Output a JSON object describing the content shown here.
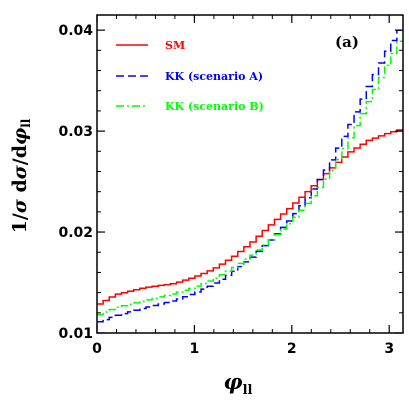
{
  "chart_data": {
    "type": "line",
    "panel_label": "(a)",
    "xlabel": "φ_ll",
    "ylabel": "1/σ dσ/dφ_ll",
    "xlim": [
      0,
      3.1416
    ],
    "ylim": [
      0.01,
      0.0415
    ],
    "x_ticks": [
      0,
      1,
      2,
      3
    ],
    "x_tick_labels": [
      "0",
      "1",
      "2",
      "3"
    ],
    "y_ticks": [
      0.01,
      0.02,
      0.03,
      0.04
    ],
    "y_tick_labels": [
      "0.01",
      "0.02",
      "0.03",
      "0.04"
    ],
    "legend_position": "top-left",
    "grid": false,
    "step": true,
    "series": [
      {
        "name": "SM",
        "color": "#ff0000",
        "dash": "solid",
        "points": [
          [
            0,
            0.0127
          ],
          [
            0.2,
            0.0138
          ],
          [
            0.5,
            0.0145
          ],
          [
            0.8,
            0.0149
          ],
          [
            1.0,
            0.0155
          ],
          [
            1.2,
            0.0163
          ],
          [
            1.4,
            0.0175
          ],
          [
            1.6,
            0.019
          ],
          [
            1.8,
            0.0208
          ],
          [
            2.0,
            0.0225
          ],
          [
            2.2,
            0.0243
          ],
          [
            2.4,
            0.0262
          ],
          [
            2.6,
            0.0279
          ],
          [
            2.8,
            0.0291
          ],
          [
            3.0,
            0.0298
          ],
          [
            3.1416,
            0.0302
          ]
        ]
      },
      {
        "name": "KK (scenario A)",
        "color": "#0000ff",
        "dash": "dashed",
        "points": [
          [
            0,
            0.011
          ],
          [
            0.2,
            0.0117
          ],
          [
            0.5,
            0.0125
          ],
          [
            0.8,
            0.0132
          ],
          [
            1.0,
            0.0139
          ],
          [
            1.2,
            0.0148
          ],
          [
            1.4,
            0.016
          ],
          [
            1.6,
            0.0175
          ],
          [
            1.8,
            0.0193
          ],
          [
            2.0,
            0.0213
          ],
          [
            2.2,
            0.0238
          ],
          [
            2.4,
            0.0268
          ],
          [
            2.6,
            0.0305
          ],
          [
            2.8,
            0.0345
          ],
          [
            3.0,
            0.0382
          ],
          [
            3.1416,
            0.0405
          ]
        ]
      },
      {
        "name": "KK (scenario B)",
        "color": "#00ff00",
        "dash": "dashdot",
        "points": [
          [
            0,
            0.0117
          ],
          [
            0.2,
            0.0125
          ],
          [
            0.5,
            0.0132
          ],
          [
            0.8,
            0.0139
          ],
          [
            1.0,
            0.0145
          ],
          [
            1.2,
            0.0153
          ],
          [
            1.4,
            0.0164
          ],
          [
            1.6,
            0.0177
          ],
          [
            1.8,
            0.0193
          ],
          [
            2.0,
            0.021
          ],
          [
            2.2,
            0.0232
          ],
          [
            2.4,
            0.0258
          ],
          [
            2.6,
            0.0292
          ],
          [
            2.8,
            0.033
          ],
          [
            3.0,
            0.0368
          ],
          [
            3.1416,
            0.0395
          ]
        ]
      }
    ]
  }
}
